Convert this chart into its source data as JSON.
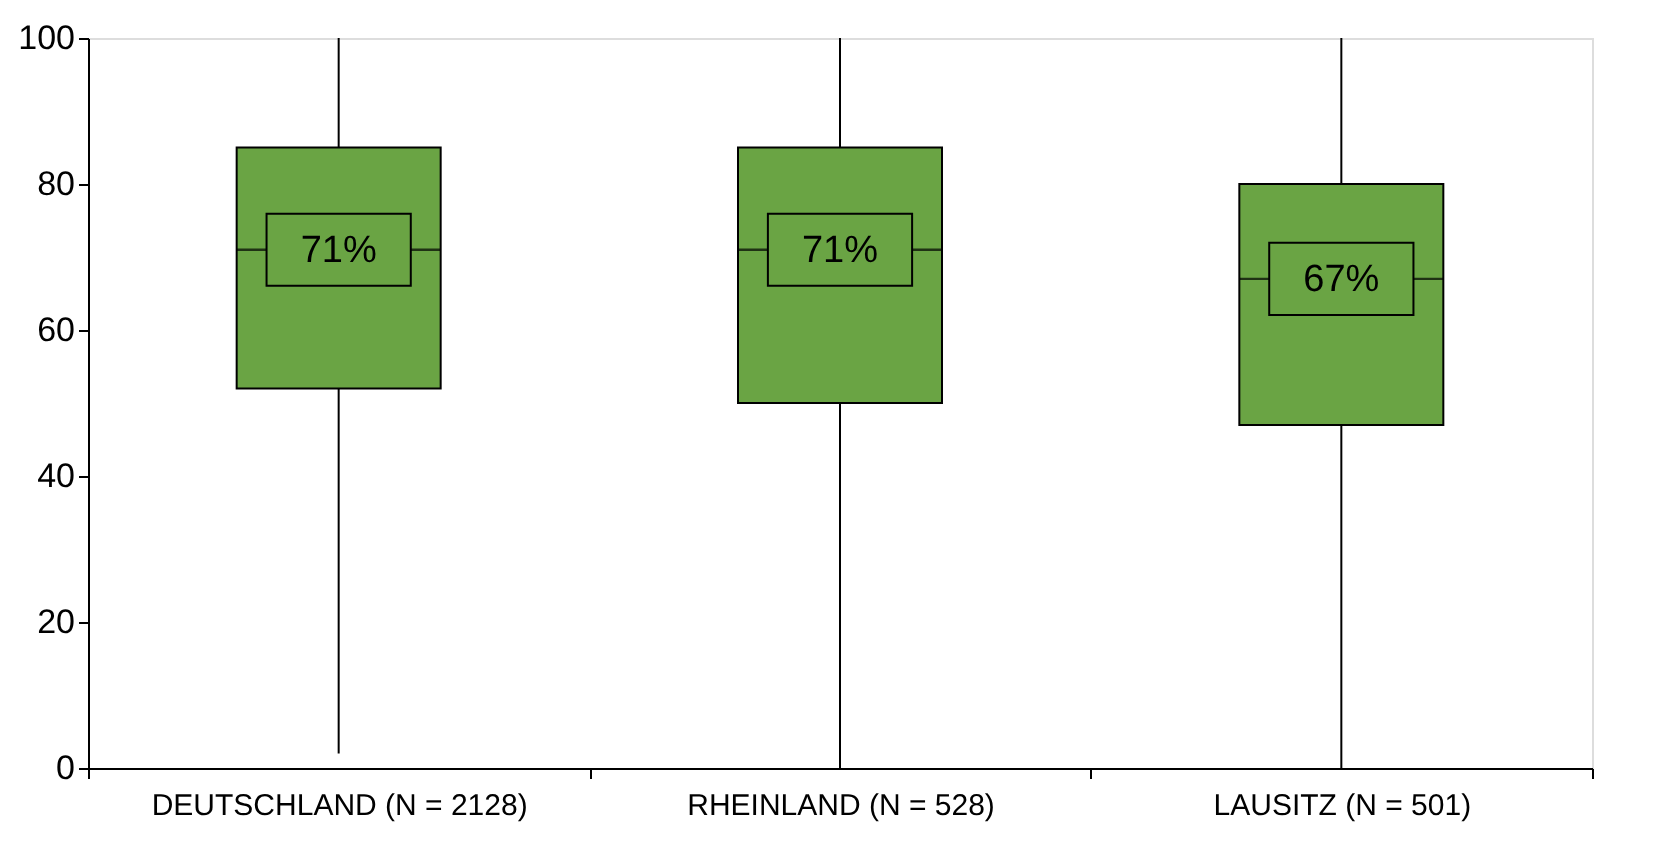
{
  "chart_data": {
    "type": "box",
    "categories": [
      "DEUTSCHLAND (N = 2128)",
      "RHEINLAND (N = 528)",
      "LAUSITZ (N = 501)"
    ],
    "boxes": [
      {
        "low": 2,
        "q1": 52,
        "median": 71,
        "q3": 85,
        "high": 100
      },
      {
        "low": 0,
        "q1": 50,
        "median": 71,
        "q3": 85,
        "high": 100
      },
      {
        "low": 0,
        "q1": 47,
        "median": 67,
        "q3": 80,
        "high": 100
      }
    ],
    "color": "#6aa444",
    "value_labels": [
      "71%",
      "71%",
      "67%"
    ],
    "ylim": [
      0,
      100
    ],
    "yticks": [
      0,
      20,
      40,
      60,
      80,
      100
    ],
    "grid": false
  }
}
